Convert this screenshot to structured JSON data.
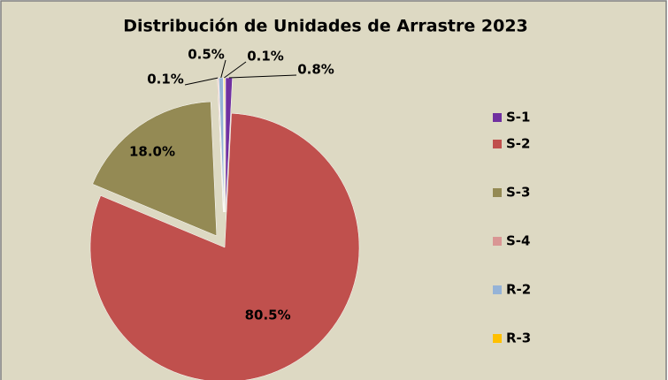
{
  "chart_data": {
    "type": "pie",
    "title": "Distribución de Unidades de Arrastre 2023",
    "categories": [
      "S-1",
      "S-2",
      "S-3",
      "S-4",
      "R-2",
      "R-3"
    ],
    "values": [
      0.8,
      80.5,
      18.0,
      0.1,
      0.5,
      0.1
    ],
    "value_labels": [
      "0.8%",
      "80.5%",
      "18.0%",
      "0.1%",
      "0.5%",
      "0.1%"
    ],
    "colors": [
      "#7030a0",
      "#c0504d",
      "#948a54",
      "#d99694",
      "#95b3d7",
      "#ffc000"
    ],
    "legend": "right"
  }
}
